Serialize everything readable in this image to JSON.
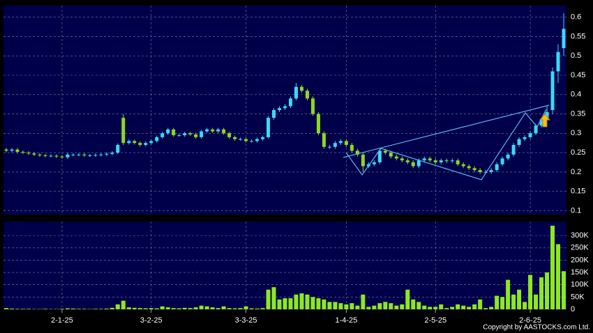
{
  "chart_data": [
    {
      "type": "candlestick",
      "up_color": "#3cd8f8",
      "down_color": "#8cd824",
      "grid": true,
      "xlim": [
        -0.5,
        100.5
      ],
      "xticks": [
        {
          "value": 10,
          "label": "2-1-25"
        },
        {
          "value": 26,
          "label": "3-2-25"
        },
        {
          "value": 43,
          "label": "3-3-25"
        },
        {
          "value": 61,
          "label": "1-4-25"
        },
        {
          "value": 77,
          "label": "2-5-25"
        },
        {
          "value": 94,
          "label": "2-6-25"
        }
      ],
      "ylim": [
        0.09,
        0.63
      ],
      "yticks": [
        0.1,
        0.15,
        0.2,
        0.25,
        0.3,
        0.35,
        0.4,
        0.45,
        0.5,
        0.55,
        0.6
      ],
      "open": [
        0.258,
        0.255,
        0.258,
        0.252,
        0.25,
        0.248,
        0.245,
        0.243,
        0.242,
        0.242,
        0.24,
        0.238,
        0.245,
        0.245,
        0.245,
        0.243,
        0.243,
        0.244,
        0.245,
        0.247,
        0.25,
        0.34,
        0.275,
        0.28,
        0.275,
        0.27,
        0.275,
        0.28,
        0.29,
        0.3,
        0.31,
        0.295,
        0.295,
        0.3,
        0.297,
        0.29,
        0.305,
        0.31,
        0.305,
        0.31,
        0.3,
        0.29,
        0.285,
        0.285,
        0.28,
        0.28,
        0.285,
        0.29,
        0.34,
        0.36,
        0.365,
        0.37,
        0.39,
        0.42,
        0.41,
        0.39,
        0.35,
        0.3,
        0.265,
        0.265,
        0.275,
        0.28,
        0.27,
        0.255,
        0.245,
        0.215,
        0.22,
        0.225,
        0.255,
        0.25,
        0.24,
        0.235,
        0.23,
        0.225,
        0.215,
        0.23,
        0.235,
        0.23,
        0.225,
        0.23,
        0.228,
        0.23,
        0.22,
        0.215,
        0.21,
        0.205,
        0.2,
        0.2,
        0.205,
        0.22,
        0.235,
        0.245,
        0.27,
        0.285,
        0.29,
        0.3,
        0.32,
        0.335,
        0.36,
        0.46,
        0.52
      ],
      "high": [
        0.262,
        0.262,
        0.262,
        0.256,
        0.254,
        0.252,
        0.249,
        0.247,
        0.246,
        0.246,
        0.244,
        0.249,
        0.249,
        0.249,
        0.249,
        0.247,
        0.248,
        0.249,
        0.251,
        0.254,
        0.274,
        0.35,
        0.284,
        0.284,
        0.279,
        0.279,
        0.284,
        0.294,
        0.304,
        0.314,
        0.314,
        0.299,
        0.304,
        0.304,
        0.301,
        0.309,
        0.314,
        0.314,
        0.314,
        0.314,
        0.304,
        0.294,
        0.289,
        0.289,
        0.284,
        0.289,
        0.294,
        0.345,
        0.365,
        0.37,
        0.375,
        0.395,
        0.43,
        0.425,
        0.415,
        0.395,
        0.355,
        0.305,
        0.27,
        0.28,
        0.285,
        0.285,
        0.275,
        0.26,
        0.25,
        0.225,
        0.23,
        0.26,
        0.26,
        0.255,
        0.245,
        0.24,
        0.235,
        0.23,
        0.235,
        0.24,
        0.24,
        0.235,
        0.235,
        0.235,
        0.235,
        0.235,
        0.225,
        0.22,
        0.215,
        0.21,
        0.205,
        0.21,
        0.225,
        0.24,
        0.25,
        0.275,
        0.29,
        0.295,
        0.305,
        0.325,
        0.34,
        0.37,
        0.47,
        0.53,
        0.61
      ],
      "low": [
        0.251,
        0.251,
        0.248,
        0.246,
        0.244,
        0.241,
        0.239,
        0.238,
        0.238,
        0.236,
        0.234,
        0.234,
        0.241,
        0.241,
        0.239,
        0.239,
        0.239,
        0.24,
        0.241,
        0.243,
        0.246,
        0.27,
        0.271,
        0.271,
        0.266,
        0.266,
        0.271,
        0.276,
        0.286,
        0.296,
        0.291,
        0.291,
        0.291,
        0.293,
        0.286,
        0.286,
        0.301,
        0.301,
        0.301,
        0.296,
        0.286,
        0.281,
        0.281,
        0.276,
        0.276,
        0.276,
        0.281,
        0.286,
        0.335,
        0.355,
        0.36,
        0.365,
        0.385,
        0.405,
        0.385,
        0.345,
        0.295,
        0.26,
        0.26,
        0.26,
        0.27,
        0.265,
        0.25,
        0.24,
        0.2,
        0.21,
        0.215,
        0.22,
        0.245,
        0.235,
        0.23,
        0.225,
        0.22,
        0.21,
        0.21,
        0.225,
        0.225,
        0.22,
        0.22,
        0.223,
        0.223,
        0.215,
        0.21,
        0.205,
        0.2,
        0.195,
        0.195,
        0.195,
        0.2,
        0.215,
        0.23,
        0.24,
        0.265,
        0.28,
        0.285,
        0.295,
        0.315,
        0.33,
        0.35,
        0.43,
        0.5
      ],
      "close": [
        0.255,
        0.258,
        0.252,
        0.25,
        0.248,
        0.245,
        0.243,
        0.242,
        0.242,
        0.24,
        0.238,
        0.245,
        0.245,
        0.245,
        0.243,
        0.243,
        0.244,
        0.245,
        0.247,
        0.25,
        0.27,
        0.275,
        0.28,
        0.275,
        0.27,
        0.275,
        0.28,
        0.29,
        0.3,
        0.31,
        0.295,
        0.295,
        0.3,
        0.297,
        0.29,
        0.305,
        0.31,
        0.305,
        0.31,
        0.3,
        0.29,
        0.285,
        0.285,
        0.28,
        0.28,
        0.285,
        0.29,
        0.34,
        0.36,
        0.365,
        0.37,
        0.39,
        0.42,
        0.41,
        0.39,
        0.35,
        0.3,
        0.265,
        0.265,
        0.275,
        0.28,
        0.27,
        0.255,
        0.245,
        0.215,
        0.22,
        0.225,
        0.255,
        0.25,
        0.24,
        0.235,
        0.23,
        0.225,
        0.215,
        0.23,
        0.235,
        0.23,
        0.225,
        0.23,
        0.228,
        0.23,
        0.22,
        0.215,
        0.21,
        0.205,
        0.2,
        0.2,
        0.205,
        0.22,
        0.235,
        0.245,
        0.27,
        0.285,
        0.29,
        0.3,
        0.32,
        0.335,
        0.355,
        0.46,
        0.51,
        0.57
      ]
    },
    {
      "type": "bar",
      "color": "#8ee820",
      "grid": true,
      "ylim": [
        0,
        357000
      ],
      "yticks": [
        0,
        {
          "value": 50000,
          "label": "50K"
        },
        {
          "value": 100000,
          "label": "100K"
        },
        {
          "value": 150000,
          "label": "150K"
        },
        {
          "value": 200000,
          "label": "200K"
        },
        {
          "value": 250000,
          "label": "250K"
        },
        {
          "value": 300000,
          "label": "300K"
        }
      ],
      "values": [
        5000,
        3000,
        2000,
        2000,
        2000,
        1000,
        1000,
        2000,
        1000,
        1000,
        2000,
        4000,
        3000,
        2000,
        2000,
        1000,
        2000,
        2000,
        3000,
        6000,
        20000,
        35000,
        8000,
        6000,
        5000,
        4000,
        5000,
        4000,
        12000,
        8000,
        5000,
        4000,
        6000,
        5000,
        8000,
        15000,
        12000,
        8000,
        5000,
        12000,
        5000,
        4000,
        5000,
        12000,
        4000,
        3000,
        5000,
        80000,
        90000,
        40000,
        45000,
        45000,
        60000,
        65000,
        60000,
        50000,
        45000,
        40000,
        30000,
        30000,
        25000,
        20000,
        25000,
        15000,
        60000,
        10000,
        15000,
        25000,
        30000,
        25000,
        15000,
        20000,
        80000,
        40000,
        30000,
        15000,
        10000,
        10000,
        20000,
        5000,
        10000,
        20000,
        15000,
        10000,
        20000,
        40000,
        5000,
        10000,
        55000,
        50000,
        120000,
        60000,
        80000,
        30000,
        140000,
        60000,
        130000,
        150000,
        340000,
        265000,
        155000
      ]
    }
  ],
  "copyright": "Copyright by AASTOCKS.com Ltd."
}
